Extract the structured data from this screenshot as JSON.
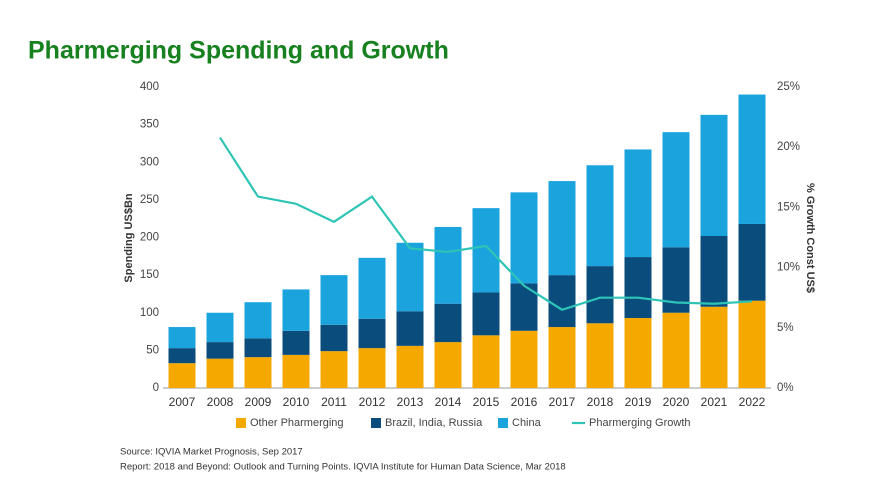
{
  "chart_data": {
    "type": "bar",
    "title": "Pharmerging Spending and Growth",
    "y_label": "Spending US$Bn",
    "y2_label": "% Growth Const US$",
    "categories": [
      "2007",
      "2008",
      "2009",
      "2010",
      "2011",
      "2012",
      "2013",
      "2014",
      "2015",
      "2016",
      "2017",
      "2018",
      "2019",
      "2020",
      "2021",
      "2022"
    ],
    "series": [
      {
        "name": "Other Pharmerging",
        "color": "#f5a800",
        "type": "bar",
        "values": [
          33,
          39,
          41,
          44,
          49,
          53,
          56,
          61,
          70,
          76,
          81,
          86,
          93,
          100,
          108,
          116
        ]
      },
      {
        "name": "Brazil, India, Russia",
        "color": "#0a4d7d",
        "type": "bar",
        "values": [
          20,
          22,
          25,
          32,
          35,
          39,
          46,
          51,
          57,
          63,
          69,
          76,
          81,
          87,
          94,
          102
        ]
      },
      {
        "name": "China",
        "color": "#1aa3dd",
        "type": "bar",
        "values": [
          28,
          39,
          48,
          55,
          66,
          81,
          91,
          102,
          112,
          121,
          125,
          134,
          143,
          153,
          161,
          172
        ]
      },
      {
        "name": "Pharmerging Growth",
        "color": "#2ec4b6",
        "type": "line",
        "axis": "y2",
        "values": [
          null,
          20.8,
          15.9,
          15.3,
          13.8,
          15.9,
          11.6,
          11.3,
          11.8,
          8.5,
          6.5,
          7.5,
          7.5,
          7.1,
          7.0,
          7.2
        ]
      }
    ],
    "ylim": [
      0,
      400
    ],
    "yticks": [
      0,
      50,
      100,
      150,
      200,
      250,
      300,
      350,
      400
    ],
    "y2lim": [
      0,
      25
    ],
    "y2ticks": [
      {
        "value": 0,
        "label": "0%"
      },
      {
        "value": 5,
        "label": "5%"
      },
      {
        "value": 10,
        "label": "10%"
      },
      {
        "value": 15,
        "label": "15%"
      },
      {
        "value": 20,
        "label": "20%"
      },
      {
        "value": 25,
        "label": "25%"
      }
    ],
    "stacked": true,
    "legend": "bottom",
    "sources": [
      "Source: IQVIA Market Prognosis, Sep 2017",
      "Report: 2018 and Beyond: Outlook and Turning Points. IQVIA Institute for Human Data Science, Mar 2018"
    ]
  }
}
